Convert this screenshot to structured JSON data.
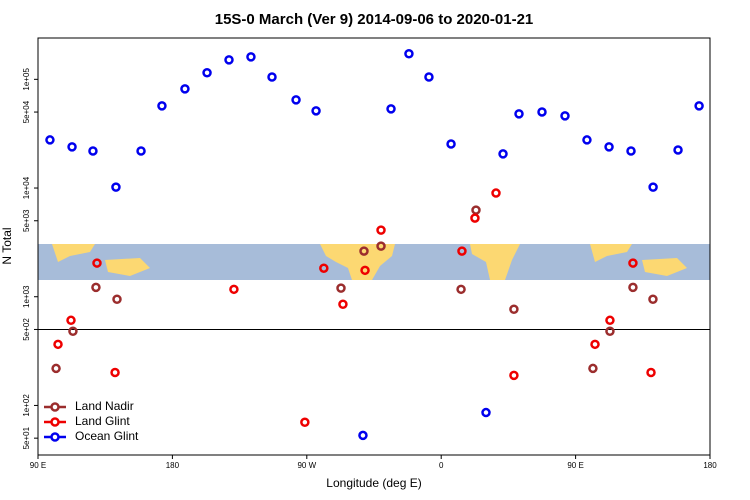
{
  "chart_data": {
    "type": "scatter",
    "title": "15S-0 March (Ver 9)   2014-09-06 to 2020-01-21",
    "xlabel": "Longitude (deg E)",
    "ylabel": "N Total",
    "xlim": [
      90,
      540
    ],
    "xticks": [
      {
        "value": 90,
        "label": "90 E"
      },
      180,
      {
        "value": 270,
        "label": "90 W"
      },
      0,
      {
        "value": 450,
        "label": "90 E"
      },
      {
        "value": 540,
        "label": "180"
      }
    ],
    "ylim": [
      35,
      240000
    ],
    "ylog": true,
    "yticks": [
      {
        "value": 50,
        "label": "5e+01"
      },
      {
        "value": 100,
        "label": "1e+02"
      },
      {
        "value": 500,
        "label": "5e+02"
      },
      {
        "value": 1000,
        "label": "1e+03"
      },
      {
        "value": 5000,
        "label": "5e+03"
      },
      {
        "value": 10000,
        "label": "1e+04"
      },
      {
        "value": 50000,
        "label": "5e+04"
      },
      {
        "value": 100000,
        "label": "1e+05"
      }
    ],
    "hline": 500,
    "legend": "bottomleft",
    "series": [
      {
        "name": "Land Nadir",
        "color": "#9b2d2d",
        "x": [
          102.1,
          113.4,
          128.8,
          142.9,
          292.9,
          308.3,
          319.7,
          373.3,
          383.3,
          408.7,
          461.6,
          473.0,
          488.4,
          501.8
        ],
        "values": [
          219,
          481,
          1220,
          948,
          1200,
          2630,
          2920,
          1170,
          6270,
          767,
          219,
          481,
          1220,
          948
        ]
      },
      {
        "name": "Land Glint",
        "color": "#ee0000",
        "x": [
          103.4,
          112.1,
          129.5,
          141.6,
          221.2,
          268.7,
          281.4,
          294.2,
          309.0,
          319.7,
          373.9,
          382.6,
          396.7,
          408.7,
          463.0,
          473.0,
          488.4,
          500.5
        ],
        "values": [
          365,
          607,
          2040,
          201,
          1170,
          70,
          1830,
          853,
          1750,
          4100,
          2630,
          5290,
          8990,
          189,
          365,
          607,
          2040,
          201
        ]
      },
      {
        "name": "Ocean Glint",
        "color": "#0000ee",
        "x": [
          98.0,
          112.8,
          126.8,
          142.2,
          159.0,
          173.0,
          188.4,
          203.2,
          217.9,
          232.6,
          246.7,
          262.8,
          276.2,
          307.6,
          326.4,
          338.4,
          351.8,
          366.6,
          390.0,
          401.4,
          412.1,
          427.5,
          442.9,
          457.6,
          472.4,
          487.1,
          501.9,
          518.6,
          532.7
        ],
        "values": [
          27700,
          23900,
          21900,
          10200,
          21900,
          57000,
          81700,
          115000,
          151000,
          161000,
          105000,
          64700,
          51300,
          53,
          53500,
          172000,
          105000,
          25400,
          86,
          20600,
          48100,
          50100,
          46100,
          27700,
          23900,
          21900,
          10200,
          22400,
          57000
        ]
      }
    ]
  }
}
